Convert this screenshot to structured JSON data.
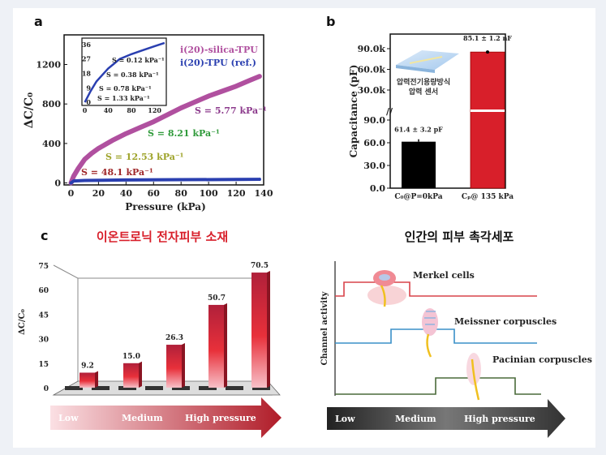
{
  "panel_labels": {
    "a": "a",
    "b": "b",
    "c": "c"
  },
  "colors": {
    "silica": "#b0509f",
    "tpu": "#2a3fb0",
    "red": "#d81f2a",
    "s1": "#a0282a",
    "s2": "#9ea32a",
    "s3": "#2f9a3a",
    "s4": "#8c3a8c",
    "merkel": "#d9434a",
    "meissner": "#3a90c8",
    "pacinian": "#4a6a3a"
  },
  "chart_data": [
    {
      "id": "a",
      "type": "line",
      "xlabel": "Pressure (kPa)",
      "ylabel": "ΔC/C₀",
      "xlim": [
        -5,
        140
      ],
      "ylim": [
        -20,
        1500
      ],
      "xticks": [
        "0",
        "20",
        "40",
        "60",
        "80",
        "100",
        "120",
        "140"
      ],
      "xtick_values": [
        0,
        20,
        40,
        60,
        80,
        100,
        120,
        140
      ],
      "yticks": [
        "0",
        "400",
        "800",
        "1200"
      ],
      "ytick_values": [
        0,
        400,
        800,
        1200
      ],
      "legend": [
        "i(20)-silica-TPU",
        "i(20)-TPU (ref.)"
      ],
      "legend_position": "top-right",
      "series": [
        {
          "name": "i(20)-silica-TPU",
          "x": [
            0,
            2,
            5,
            10,
            15,
            20,
            30,
            40,
            50,
            60,
            70,
            80,
            90,
            100,
            110,
            120,
            130,
            137
          ],
          "y": [
            0,
            70,
            140,
            240,
            300,
            350,
            430,
            500,
            560,
            620,
            690,
            760,
            820,
            880,
            930,
            980,
            1040,
            1080
          ]
        },
        {
          "name": "i(20)-TPU (ref.)",
          "x": [
            0,
            2,
            10,
            40,
            80,
            120,
            137
          ],
          "y": [
            0,
            20,
            25,
            30,
            33,
            35,
            37
          ]
        }
      ],
      "annotations": [
        "S = 48.1 kPa⁻¹",
        "S = 12.53 kPa⁻¹",
        "S = 8.21 kPa⁻¹",
        "S = 5.77 kPa⁻¹"
      ],
      "inset": {
        "xlim": [
          -5,
          140
        ],
        "ylim": [
          -2,
          40
        ],
        "xticks": [
          "0",
          "40",
          "80",
          "120"
        ],
        "xtick_values": [
          0,
          40,
          80,
          120
        ],
        "yticks": [
          "0",
          "9",
          "18",
          "27",
          "36"
        ],
        "ytick_values": [
          0,
          9,
          18,
          27,
          36
        ],
        "x": [
          0,
          10,
          20,
          30,
          40,
          50,
          60,
          70,
          80,
          100,
          120,
          137
        ],
        "y": [
          0,
          7,
          13,
          17,
          21,
          24,
          27,
          28.5,
          30,
          32.5,
          35,
          37
        ],
        "annotations": [
          "S = 0.12 kPa⁻¹",
          "S = 0.38 kPa⁻¹",
          "S = 0.78 kPa⁻¹",
          "S = 1.33 kPa⁻¹"
        ]
      }
    },
    {
      "id": "b",
      "type": "bar",
      "ylabel": "Capacitance (pF)",
      "categories": [
        "C₀@P=0kPa",
        "Cₚ@ 135 kPa"
      ],
      "values_pF": [
        61.4,
        85100
      ],
      "errors_pF": [
        3.2,
        1200
      ],
      "data_labels": [
        "61.4 ± 3.2 pF",
        "85.1 ± 1.2 nF"
      ],
      "yticks_lower": [
        "0.0",
        "30.0",
        "60.0",
        "90.0"
      ],
      "ytick_values_lower": [
        0,
        30,
        60,
        90
      ],
      "yticks_upper": [
        "30.0k",
        "60.0k",
        "90.0k"
      ],
      "ytick_values_upper": [
        30000,
        60000,
        90000
      ],
      "axis_break": true,
      "inset_caption": [
        "압력전기용량방식",
        "압력 센서"
      ]
    },
    {
      "id": "c",
      "type": "bar",
      "title": "이온트로닉 전자피부 소재",
      "ylabel": "ΔC/C₀",
      "ylim": [
        0,
        75
      ],
      "yticks": [
        "0",
        "15",
        "30",
        "45",
        "60",
        "75"
      ],
      "ytick_values": [
        0,
        15,
        30,
        45,
        60,
        75
      ],
      "values": [
        9.2,
        15.0,
        26.3,
        50.7,
        70.5
      ],
      "data_labels": [
        "9.2",
        "15.0",
        "26.3",
        "50.7",
        "70.5"
      ],
      "arrow_labels": [
        "Low",
        "Medium",
        "High pressure"
      ]
    },
    {
      "id": "d",
      "type": "line",
      "title": "인간의 피부 촉각세포",
      "ylabel": "Channel activity",
      "series": [
        {
          "name": "Merkel cells",
          "active_range": [
            "low",
            "low-medium"
          ]
        },
        {
          "name": "Meissner corpuscles",
          "active_range": [
            "medium",
            "medium-high"
          ]
        },
        {
          "name": "Pacinian corpuscles",
          "active_range": [
            "high",
            "high"
          ]
        }
      ],
      "arrow_labels": [
        "Low",
        "Medium",
        "High pressure"
      ]
    }
  ]
}
